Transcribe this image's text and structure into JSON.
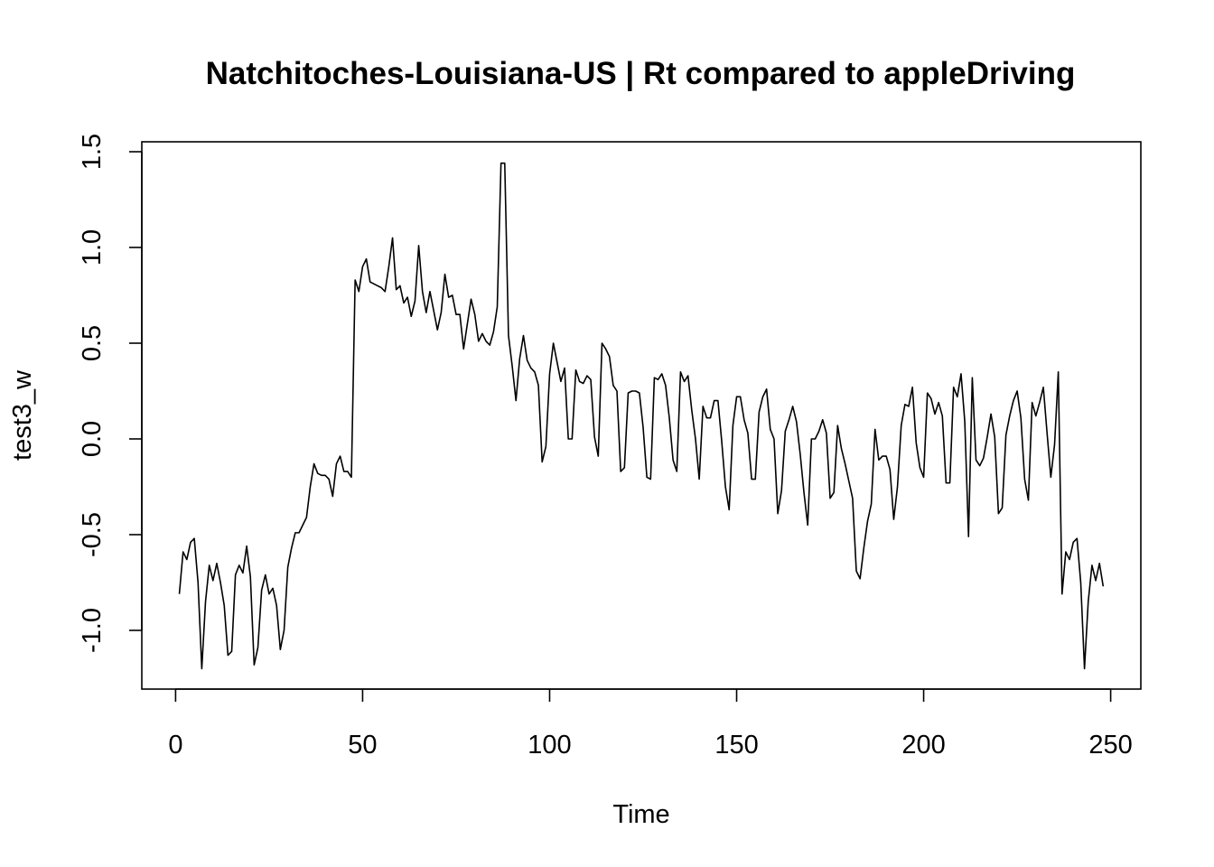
{
  "chart_data": {
    "type": "line",
    "title": "Natchitoches-Louisiana-US | Rt compared to appleDriving",
    "xlabel": "Time",
    "ylabel": "test3_w",
    "xlim": [
      0,
      250
    ],
    "ylim": [
      -1.2,
      1.45
    ],
    "x_ticks": [
      0,
      50,
      100,
      150,
      200,
      250
    ],
    "x_tick_labels": [
      "0",
      "50",
      "100",
      "150",
      "200",
      "250"
    ],
    "y_ticks": [
      -1.0,
      -0.5,
      0.0,
      0.5,
      1.0,
      1.5
    ],
    "y_tick_labels": [
      "-1.0",
      "-0.5",
      "0.0",
      "0.5",
      "1.0",
      "1.5"
    ],
    "grid": false,
    "legend": "none",
    "color": "#000000",
    "series": [
      {
        "x_start": 1,
        "values": [
          -0.81,
          -0.59,
          -0.63,
          -0.54,
          -0.52,
          -0.75,
          -1.2,
          -0.85,
          -0.66,
          -0.74,
          -0.65,
          -0.75,
          -0.87,
          -1.13,
          -1.11,
          -0.71,
          -0.66,
          -0.7,
          -0.56,
          -0.72,
          -1.18,
          -1.09,
          -0.79,
          -0.71,
          -0.81,
          -0.78,
          -0.87,
          -1.1,
          -1.0,
          -0.67,
          -0.57,
          -0.49,
          -0.49,
          -0.45,
          -0.41,
          -0.25,
          -0.13,
          -0.18,
          -0.19,
          -0.19,
          -0.21,
          -0.3,
          -0.13,
          -0.09,
          -0.17,
          -0.17,
          -0.2,
          0.83,
          0.77,
          0.9,
          0.94,
          0.82,
          0.81,
          0.8,
          0.79,
          0.77,
          0.9,
          1.05,
          0.78,
          0.8,
          0.71,
          0.74,
          0.64,
          0.72,
          1.01,
          0.77,
          0.66,
          0.77,
          0.67,
          0.57,
          0.66,
          0.86,
          0.74,
          0.75,
          0.65,
          0.65,
          0.47,
          0.6,
          0.73,
          0.65,
          0.51,
          0.55,
          0.51,
          0.49,
          0.56,
          0.69,
          1.44,
          1.44,
          0.54,
          0.38,
          0.2,
          0.42,
          0.54,
          0.41,
          0.37,
          0.35,
          0.28,
          -0.12,
          -0.04,
          0.34,
          0.5,
          0.4,
          0.3,
          0.37,
          0.0,
          0.0,
          0.36,
          0.3,
          0.29,
          0.33,
          0.31,
          0.01,
          -0.09,
          0.5,
          0.47,
          0.43,
          0.28,
          0.25,
          -0.17,
          -0.15,
          0.24,
          0.25,
          0.25,
          0.24,
          0.06,
          -0.2,
          -0.21,
          0.32,
          0.31,
          0.34,
          0.28,
          0.11,
          -0.11,
          -0.17,
          0.35,
          0.3,
          0.33,
          0.15,
          0.0,
          -0.21,
          0.17,
          0.11,
          0.11,
          0.2,
          0.2,
          -0.01,
          -0.25,
          -0.37,
          0.07,
          0.22,
          0.22,
          0.1,
          0.03,
          -0.21,
          -0.21,
          0.14,
          0.22,
          0.26,
          0.05,
          0.0,
          -0.39,
          -0.27,
          0.04,
          0.1,
          0.17,
          0.09,
          -0.08,
          -0.28,
          -0.45,
          0.0,
          0.0,
          0.04,
          0.1,
          0.03,
          -0.31,
          -0.28,
          0.07,
          -0.05,
          -0.13,
          -0.22,
          -0.31,
          -0.69,
          -0.73,
          -0.57,
          -0.43,
          -0.34,
          0.05,
          -0.11,
          -0.09,
          -0.09,
          -0.16,
          -0.42,
          -0.25,
          0.07,
          0.18,
          0.17,
          0.27,
          -0.02,
          -0.15,
          -0.2,
          0.24,
          0.21,
          0.13,
          0.19,
          0.12,
          -0.23,
          -0.23,
          0.27,
          0.22,
          0.34,
          0.09,
          -0.51,
          0.32,
          -0.11,
          -0.14,
          -0.1,
          0.01,
          0.13,
          0.01,
          -0.39,
          -0.36,
          0.02,
          0.12,
          0.2,
          0.25,
          0.11,
          -0.21,
          -0.32,
          0.19,
          0.12,
          0.19,
          0.27,
          0.03,
          -0.2,
          -0.03,
          0.35,
          -0.81,
          -0.59,
          -0.63,
          -0.54,
          -0.52,
          -0.75,
          -1.2,
          -0.85,
          -0.66,
          -0.74,
          -0.65,
          -0.77
        ]
      }
    ]
  }
}
